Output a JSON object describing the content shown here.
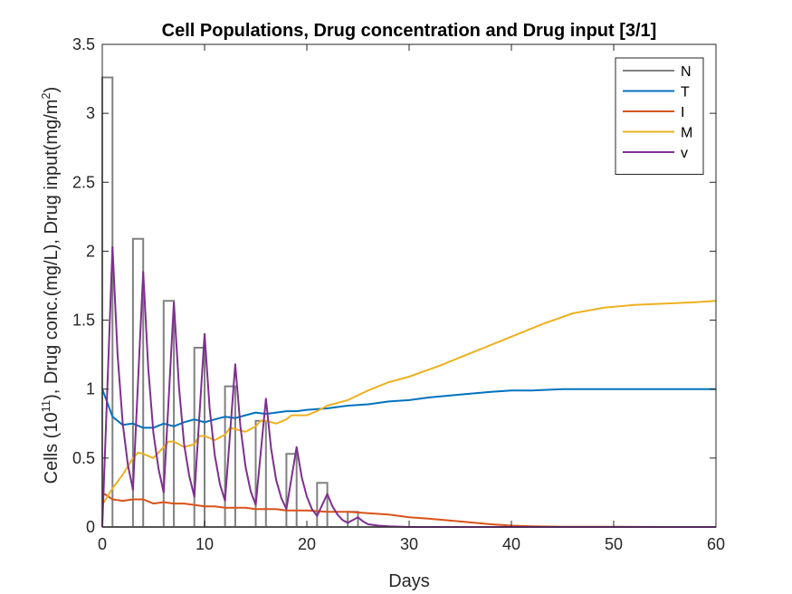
{
  "chart_data": {
    "type": "line",
    "title": "Cell Populations, Drug concentration and Drug input [3/1]",
    "xlabel": "Days",
    "ylabel": {
      "p1": "Cells (10",
      "sup1": "11",
      "p2": "), Drug conc.(mg/L), Drug input(mg/m",
      "sup2": "2",
      "p3": ")"
    },
    "xlim": [
      0,
      60
    ],
    "ylim": [
      0,
      3.5
    ],
    "xticks": [
      0,
      10,
      20,
      30,
      40,
      50,
      60
    ],
    "yticks": [
      0,
      0.5,
      1,
      1.5,
      2,
      2.5,
      3,
      3.5
    ],
    "xtick_labels": [
      "0",
      "10",
      "20",
      "30",
      "40",
      "50",
      "60"
    ],
    "ytick_labels": [
      "0",
      "0.5",
      "1",
      "1.5",
      "2",
      "2.5",
      "3",
      "3.5"
    ],
    "grid": false,
    "legend_position": "top-right",
    "series": [
      {
        "name": "N",
        "style": "bars",
        "color": "#808080",
        "pulses": [
          {
            "start": 0,
            "end": 1,
            "value": 3.26
          },
          {
            "start": 3,
            "end": 4,
            "value": 2.09
          },
          {
            "start": 6,
            "end": 7,
            "value": 1.64
          },
          {
            "start": 9,
            "end": 10,
            "value": 1.3
          },
          {
            "start": 12,
            "end": 13,
            "value": 1.02
          },
          {
            "start": 15,
            "end": 16,
            "value": 0.77
          },
          {
            "start": 18,
            "end": 19,
            "value": 0.53
          },
          {
            "start": 21,
            "end": 22,
            "value": 0.32
          },
          {
            "start": 24,
            "end": 25,
            "value": 0.11
          }
        ]
      },
      {
        "name": "T",
        "color": "#0072BD",
        "x": [
          0,
          1,
          2,
          3,
          4,
          5,
          6,
          7,
          8,
          9,
          10,
          11,
          12,
          13,
          14,
          15,
          16,
          17,
          18,
          19,
          20,
          22,
          24,
          26,
          28,
          30,
          32,
          35,
          38,
          40,
          42,
          45,
          48,
          50,
          55,
          60
        ],
        "y": [
          1.0,
          0.8,
          0.74,
          0.75,
          0.72,
          0.72,
          0.75,
          0.73,
          0.76,
          0.78,
          0.76,
          0.78,
          0.8,
          0.79,
          0.81,
          0.83,
          0.82,
          0.83,
          0.84,
          0.84,
          0.85,
          0.86,
          0.88,
          0.89,
          0.91,
          0.92,
          0.94,
          0.96,
          0.98,
          0.99,
          0.99,
          1.0,
          1.0,
          1.0,
          1.0,
          1.0
        ]
      },
      {
        "name": "I",
        "color": "#D95319",
        "x": [
          0,
          1,
          2,
          3,
          4,
          5,
          6,
          7,
          8,
          9,
          10,
          11,
          12,
          13,
          14,
          15,
          16,
          17,
          18,
          19,
          20,
          22,
          24,
          26,
          28,
          30,
          32,
          35,
          38,
          40,
          42,
          45,
          50,
          55,
          60
        ],
        "y": [
          0.25,
          0.2,
          0.19,
          0.2,
          0.2,
          0.17,
          0.18,
          0.17,
          0.17,
          0.16,
          0.15,
          0.15,
          0.14,
          0.14,
          0.14,
          0.13,
          0.13,
          0.13,
          0.12,
          0.12,
          0.12,
          0.11,
          0.11,
          0.1,
          0.09,
          0.07,
          0.06,
          0.04,
          0.02,
          0.01,
          0.005,
          0.002,
          0.001,
          0,
          0
        ]
      },
      {
        "name": "M",
        "color": "#EDB120",
        "x": [
          0,
          1,
          2,
          3,
          3.5,
          4,
          5,
          6,
          6.5,
          7,
          8,
          9,
          9.5,
          10,
          11,
          12,
          12.5,
          13,
          14,
          15,
          15.5,
          16,
          17,
          18,
          18.5,
          19,
          20,
          21,
          22,
          24,
          26,
          28,
          30,
          33,
          36,
          40,
          43,
          46,
          49,
          52,
          55,
          58,
          60
        ],
        "y": [
          0.16,
          0.28,
          0.38,
          0.5,
          0.54,
          0.53,
          0.5,
          0.58,
          0.62,
          0.62,
          0.58,
          0.6,
          0.66,
          0.66,
          0.63,
          0.67,
          0.72,
          0.71,
          0.69,
          0.73,
          0.77,
          0.77,
          0.75,
          0.78,
          0.81,
          0.81,
          0.81,
          0.84,
          0.88,
          0.92,
          0.99,
          1.05,
          1.09,
          1.17,
          1.26,
          1.38,
          1.47,
          1.55,
          1.59,
          1.61,
          1.62,
          1.63,
          1.64
        ]
      },
      {
        "name": "v",
        "color": "#7E2F8E",
        "x": [
          0,
          1,
          1.5,
          2,
          2.5,
          3,
          4,
          4.5,
          5,
          5.5,
          6,
          7,
          7.5,
          8,
          8.5,
          9,
          10,
          10.5,
          11,
          11.5,
          12,
          13,
          13.5,
          14,
          14.5,
          15,
          16,
          16.5,
          17,
          17.5,
          18,
          19,
          19.5,
          20,
          20.5,
          21,
          22,
          22.5,
          23,
          23.5,
          24,
          25,
          25.5,
          26,
          27,
          28,
          30,
          35,
          40,
          50,
          60
        ],
        "y": [
          0,
          2.03,
          1.25,
          0.75,
          0.45,
          0.27,
          1.85,
          1.15,
          0.68,
          0.42,
          0.25,
          1.63,
          1.01,
          0.6,
          0.37,
          0.22,
          1.4,
          0.86,
          0.52,
          0.31,
          0.19,
          1.18,
          0.73,
          0.44,
          0.26,
          0.16,
          0.93,
          0.57,
          0.34,
          0.21,
          0.13,
          0.58,
          0.36,
          0.22,
          0.13,
          0.08,
          0.24,
          0.15,
          0.09,
          0.05,
          0.03,
          0.07,
          0.04,
          0.02,
          0.01,
          0.005,
          0,
          0,
          0,
          0,
          0
        ]
      }
    ]
  }
}
